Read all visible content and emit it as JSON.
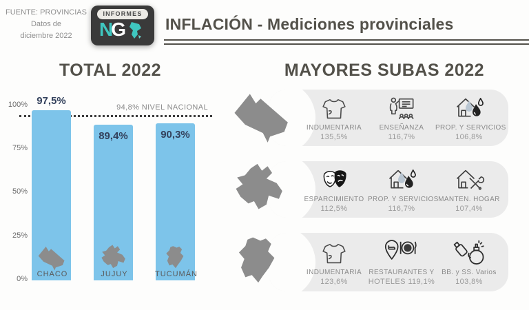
{
  "header": {
    "source": [
      "FUENTE: PROVINCIAS",
      "Datos de",
      "diciembre 2022"
    ],
    "logo": {
      "label": "INFORMES",
      "initial_n": "N",
      "initial_g": "G"
    },
    "title": "INFLACIÓN - Mediciones provinciales"
  },
  "chart_data": {
    "type": "bar",
    "title": "TOTAL 2022",
    "categories": [
      "CHACO",
      "JUJUY",
      "TUCUMÁN"
    ],
    "values": [
      97.5,
      89.4,
      90.3
    ],
    "value_labels": [
      "97,5%",
      "89,4%",
      "90,3%"
    ],
    "y_ticks": [
      "100%",
      "75%",
      "50%",
      "25%",
      "0%"
    ],
    "ylim": [
      0,
      100
    ],
    "reference_line": {
      "value": 94.8,
      "label": "94,8% NIVEL NACIONAL"
    },
    "bar_color": "#7dc4ea",
    "grid": false,
    "legend": false
  },
  "subas": {
    "title": "MAYORES SUBAS 2022",
    "rows": [
      {
        "province": "CHACO",
        "items": [
          {
            "icon": "tshirt-icon",
            "label": "INDUMENTARIA",
            "value": "135,5%"
          },
          {
            "icon": "teaching-icon",
            "label": "ENSEÑANZA",
            "value": "116,7%"
          },
          {
            "icon": "house-water-drops-icon",
            "label": "PROP. Y SERVICIOS",
            "value": "106,8%"
          }
        ]
      },
      {
        "province": "JUJUY",
        "items": [
          {
            "icon": "theater-masks-icon",
            "label": "ESPARCIMIENTO",
            "value": "112,5%"
          },
          {
            "icon": "house-water-drops-icon",
            "label": "PROP. Y SERVICIOS",
            "value": "116,7%"
          },
          {
            "icon": "house-tools-icon",
            "label": "MANTEN. HOGAR",
            "value": "107,4%"
          }
        ]
      },
      {
        "province": "TUCUMÁN",
        "items": [
          {
            "icon": "tshirt-icon",
            "label": "INDUMENTARIA",
            "value": "123,6%"
          },
          {
            "icon": "hotel-restaurant-icon",
            "label": "RESTAURANTES Y",
            "value": "HOTELES 119,1%"
          },
          {
            "icon": "spray-bottle-icon",
            "label": "BB. y SS. Varios",
            "value": "103,8%"
          }
        ]
      }
    ]
  },
  "colors": {
    "heading": "#53514a",
    "value_navy": "#33415c",
    "bar_blue": "#7dc4ea",
    "muted_gray": "#8a8a8a",
    "panel_gray": "#ebebeb",
    "province_gray": "#8c8c8c",
    "logo_teal": "#3fc7c0"
  }
}
